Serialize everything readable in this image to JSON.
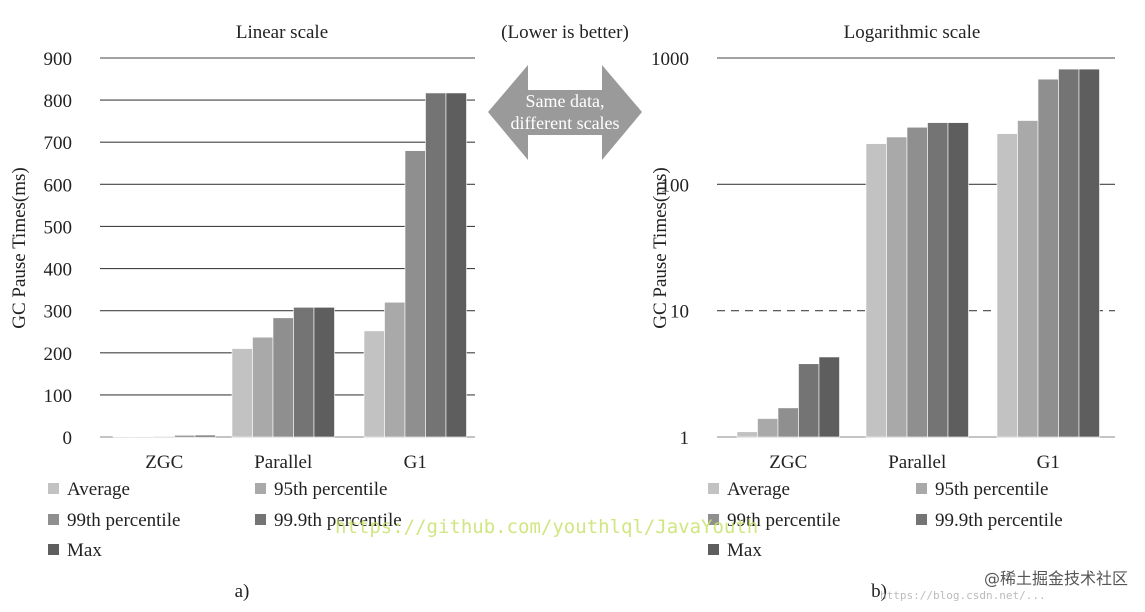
{
  "center": {
    "note": "(Lower is better)",
    "arrow_line1": "Same data,",
    "arrow_line2": "different scales"
  },
  "watermark": "https://github.com/youthlql/JavaYouth",
  "footer_watermark": "https://blog.csdn.net/...",
  "footer_brand": "@稀土掘金技术社区",
  "colors": {
    "Average": "#c2c2c2",
    "95th percentile": "#a9a9a9",
    "99th percentile": "#8f8f8f",
    "99.9th percentile": "#747474",
    "Max": "#5e5e5e",
    "grid": "#444444",
    "watermark": "#c8e26b"
  },
  "chart_data": [
    {
      "type": "bar",
      "panel_label": "a)",
      "title": "Linear scale",
      "xlabel": "",
      "ylabel": "GC Pause Times(ms)",
      "scale": "linear",
      "ylim": [
        0,
        900
      ],
      "yticks": [
        0,
        100,
        200,
        300,
        400,
        500,
        600,
        700,
        800,
        900
      ],
      "ytick_labels": [
        "0",
        "100",
        "200",
        "300",
        "400",
        "500",
        "600",
        "700",
        "800",
        "900"
      ],
      "grid": true,
      "categories": [
        "ZGC",
        "Parallel",
        "G1"
      ],
      "series": [
        {
          "name": "Average",
          "values": [
            1.1,
            210,
            252
          ]
        },
        {
          "name": "95th percentile",
          "values": [
            1.4,
            237,
            320
          ]
        },
        {
          "name": "99th percentile",
          "values": [
            1.7,
            283,
            680
          ]
        },
        {
          "name": "99.9th percentile",
          "values": [
            3.8,
            308,
            817
          ]
        },
        {
          "name": "Max",
          "values": [
            4.3,
            308,
            817
          ]
        }
      ],
      "legend": [
        "Average",
        "95th percentile",
        "99th percentile",
        "99.9th percentile",
        "Max"
      ],
      "legend_position": "bottom"
    },
    {
      "type": "bar",
      "panel_label": "b)",
      "title": "Logarithmic scale",
      "xlabel": "",
      "ylabel": "GC Pause Times(ms)",
      "scale": "log",
      "ylim": [
        1,
        1000
      ],
      "yticks": [
        1,
        10,
        100,
        1000
      ],
      "ytick_labels": [
        "1",
        "10",
        "100",
        "1000"
      ],
      "grid": true,
      "dashed_reference": 10,
      "categories": [
        "ZGC",
        "Parallel",
        "G1"
      ],
      "series": [
        {
          "name": "Average",
          "values": [
            1.1,
            210,
            252
          ]
        },
        {
          "name": "95th percentile",
          "values": [
            1.4,
            237,
            320
          ]
        },
        {
          "name": "99th percentile",
          "values": [
            1.7,
            283,
            680
          ]
        },
        {
          "name": "99.9th percentile",
          "values": [
            3.8,
            308,
            817
          ]
        },
        {
          "name": "Max",
          "values": [
            4.3,
            308,
            817
          ]
        }
      ],
      "legend": [
        "Average",
        "95th percentile",
        "99th percentile",
        "99.9th percentile",
        "Max"
      ],
      "legend_position": "bottom"
    }
  ]
}
